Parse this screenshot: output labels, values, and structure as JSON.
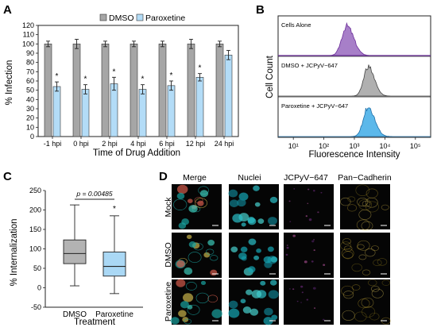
{
  "panel_labels": {
    "a": "A",
    "b": "B",
    "c": "C",
    "d": "D"
  },
  "colors": {
    "dmso_bar": "#a6a6a6",
    "paroxetine_bar": "#b3dcf7",
    "cells_alone": "#a77fc8",
    "cells_alone_edge": "#6c2e9a",
    "dmso_hist": "#b0b0b0",
    "paroxetine_hist": "#5cb8ea",
    "box_fill_dmso": "#b3b3b3",
    "box_fill_paroxetine": "#aad8f5"
  },
  "chart_data": [
    {
      "type": "bar",
      "panel": "A",
      "ylabel": "% Infection",
      "xlabel": "Time of Drug Addition",
      "ylim": [
        0,
        120
      ],
      "yticks": [
        0,
        10,
        20,
        30,
        40,
        50,
        60,
        70,
        80,
        90,
        100,
        110,
        120
      ],
      "categories": [
        "-1 hpi",
        "0 hpi",
        "2 hpi",
        "4 hpi",
        "6 hpi",
        "12 hpi",
        "24 hpi"
      ],
      "legend": [
        "DMSO",
        "Paroxetine"
      ],
      "legend_placement": "top",
      "series": [
        {
          "name": "DMSO",
          "values": [
            100,
            100,
            100,
            100,
            100,
            100,
            100
          ],
          "errors": [
            3,
            5,
            3,
            3,
            3,
            5,
            3
          ]
        },
        {
          "name": "Paroxetine",
          "values": [
            54,
            51,
            57,
            51,
            55,
            64,
            88
          ],
          "errors": [
            5,
            5,
            7,
            5,
            5,
            4,
            5
          ]
        }
      ],
      "significance": [
        true,
        true,
        true,
        true,
        true,
        true,
        false
      ],
      "significance_mark": "*"
    },
    {
      "type": "histogram",
      "panel": "B",
      "ylabel": "Cell Count",
      "xlabel": "Fluorescence Intensity",
      "xscale": "log",
      "xlim": [
        10,
        100000
      ],
      "xticks": [
        "10¹",
        "10²",
        "10³",
        "10⁴",
        "10⁵"
      ],
      "tracks": [
        {
          "name": "Cells Alone",
          "peak_log10": 2.75,
          "width": 0.18
        },
        {
          "name": "DMSO + JCPyV−647",
          "peak_log10": 3.45,
          "width": 0.16
        },
        {
          "name": "Paroxetine + JCPyV−647",
          "peak_log10": 3.45,
          "width": 0.17
        }
      ]
    },
    {
      "type": "box",
      "panel": "C",
      "ylabel": "% Internalization",
      "xlabel": "Treatment",
      "ylim": [
        -50,
        250
      ],
      "yticks": [
        -50,
        0,
        50,
        100,
        150,
        200,
        250
      ],
      "categories": [
        "DMSO",
        "Paroxetine"
      ],
      "boxes": [
        {
          "name": "DMSO",
          "min": 5,
          "q1": 62,
          "median": 88,
          "q3": 123,
          "max": 213
        },
        {
          "name": "Paroxetine",
          "min": -15,
          "q1": 30,
          "median": 55,
          "q3": 92,
          "max": 185
        }
      ],
      "pvalue_label": "p = 0.00485",
      "significance_mark": "*"
    }
  ],
  "panel_d": {
    "columns": [
      "Merge",
      "Nuclei",
      "JCPyV−647",
      "Pan−Cadherin"
    ],
    "rows": [
      "Mock",
      "DMSO",
      "Paroxetine"
    ]
  }
}
